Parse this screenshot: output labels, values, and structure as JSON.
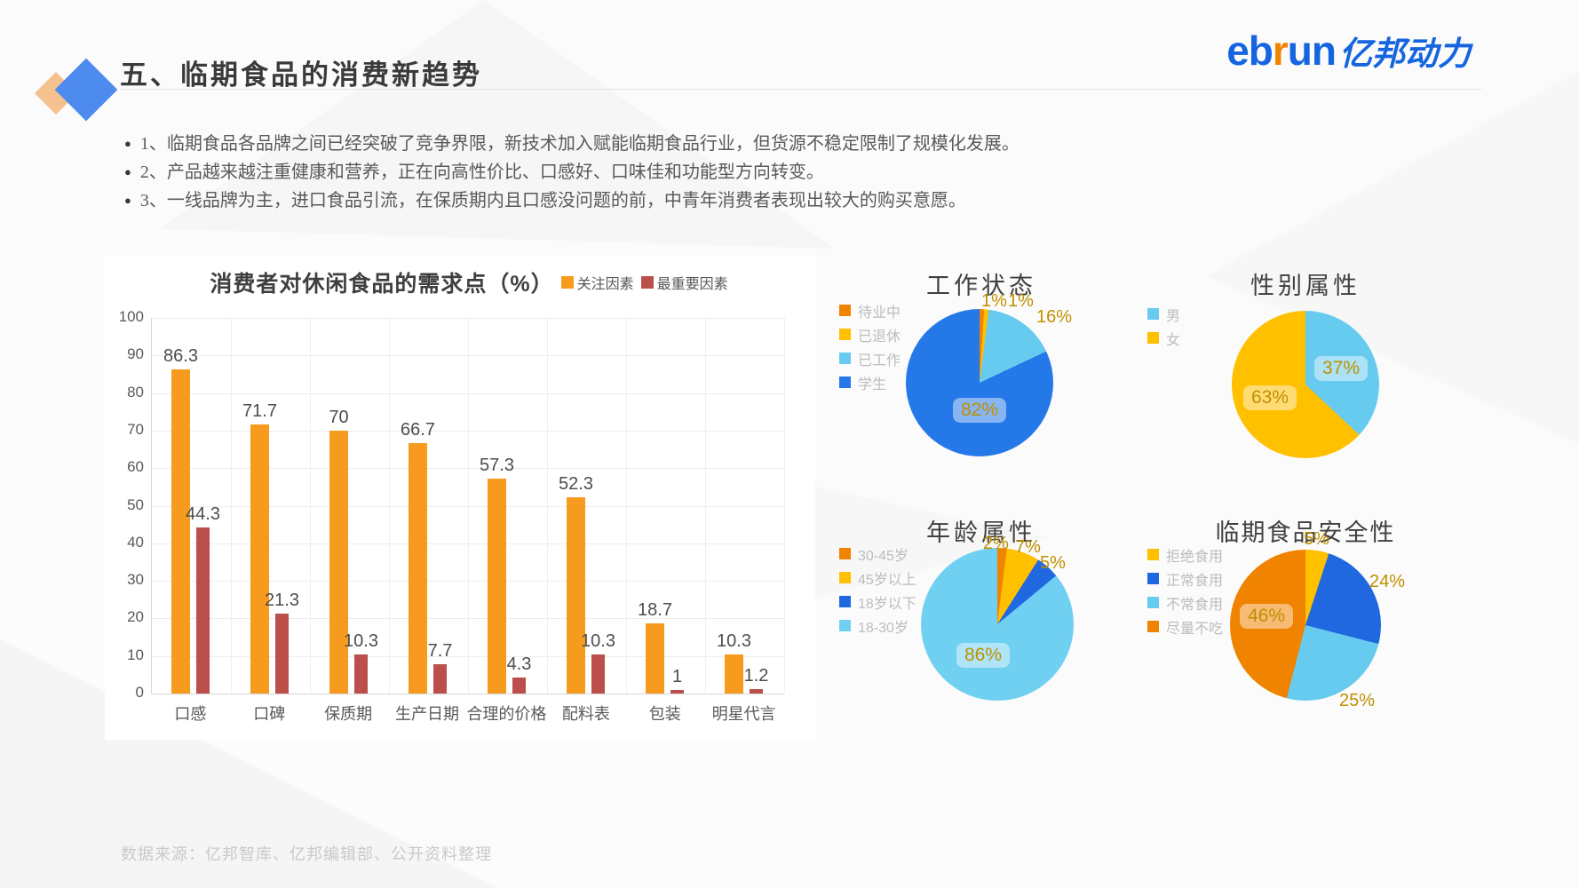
{
  "slide": {
    "title": "五、临期食品的消费新趋势",
    "logo": {
      "latin_left": "eb",
      "latin_r": "r",
      "latin_right": "un",
      "cn": "亿邦动力"
    },
    "bullets": [
      "1、临期食品各品牌之间已经突破了竞争界限，新技术加入赋能临期食品行业，但货源不稳定限制了规模化发展。",
      "2、产品越来越注重健康和营养，正在向高性价比、口感好、口味佳和功能型方向转变。",
      "3、一线品牌为主，进口食品引流，在保质期内且口感没问题的前，中青年消费者表现出较大的购买意愿。"
    ],
    "source": "数据来源：亿邦智库、亿邦编辑部、公开资料整理"
  },
  "colors": {
    "accent_blue": "#1565e0",
    "accent_orange": "#f08300",
    "bar_orange": "#f79b1e",
    "bar_red": "#bb4f4b",
    "gold": "#ffc000",
    "light_blue": "#67cbef",
    "blue": "#2478e8",
    "deep_blue": "#2068e0",
    "label_gold": "#bf9000"
  },
  "chart_data": [
    {
      "type": "bar",
      "title": "消费者对休闲食品的需求点（%）",
      "categories": [
        "口感",
        "口碑",
        "保质期",
        "生产日期",
        "合理的价格",
        "配料表",
        "包装",
        "明星代言"
      ],
      "series": [
        {
          "name": "关注因素",
          "color": "#f79b1e",
          "values": [
            86.3,
            71.7,
            70,
            66.7,
            57.3,
            52.3,
            18.7,
            10.3
          ]
        },
        {
          "name": "最重要因素",
          "color": "#bb4f4b",
          "values": [
            44.3,
            21.3,
            10.3,
            7.7,
            4.3,
            10.3,
            1,
            1.2
          ]
        }
      ],
      "xlabel": "",
      "ylabel": "",
      "ylim": [
        0,
        100
      ],
      "yticks": [
        100,
        90,
        80,
        70,
        60,
        50,
        40,
        30,
        20,
        10,
        0
      ],
      "grid": true,
      "legend_position": "top-right"
    },
    {
      "type": "pie",
      "title": "工作状态",
      "slices": [
        {
          "label": "待业中",
          "value": 1,
          "color": "#f08300"
        },
        {
          "label": "已退休",
          "value": 1,
          "color": "#ffc000"
        },
        {
          "label": "已工作",
          "value": 16,
          "color": "#67cbef"
        },
        {
          "label": "学生",
          "value": 82,
          "color": "#2478e8",
          "boxed": true
        }
      ],
      "legend_position": "left"
    },
    {
      "type": "pie",
      "title": "性别属性",
      "slices": [
        {
          "label": "男",
          "value": 37,
          "color": "#67cbef",
          "boxed": true
        },
        {
          "label": "女",
          "value": 63,
          "color": "#ffc000",
          "boxed": true
        }
      ],
      "legend_position": "left"
    },
    {
      "type": "pie",
      "title": "年龄属性",
      "slices": [
        {
          "label": "30-45岁",
          "value": 2,
          "color": "#f08300"
        },
        {
          "label": "45岁以上",
          "value": 7,
          "color": "#ffc000"
        },
        {
          "label": "18岁以下",
          "value": 5,
          "color": "#2068e0"
        },
        {
          "label": "18-30岁",
          "value": 86,
          "color": "#6fd0f2",
          "boxed": true
        }
      ],
      "legend_position": "left"
    },
    {
      "type": "pie",
      "title": "临期食品安全性",
      "slices": [
        {
          "label": "拒绝食用",
          "value": 5,
          "color": "#ffc000"
        },
        {
          "label": "正常食用",
          "value": 24,
          "color": "#2068e0"
        },
        {
          "label": "不常食用",
          "value": 25,
          "color": "#67cbef"
        },
        {
          "label": "尽量不吃",
          "value": 46,
          "color": "#f08300",
          "boxed": true
        }
      ],
      "legend_position": "left"
    }
  ]
}
